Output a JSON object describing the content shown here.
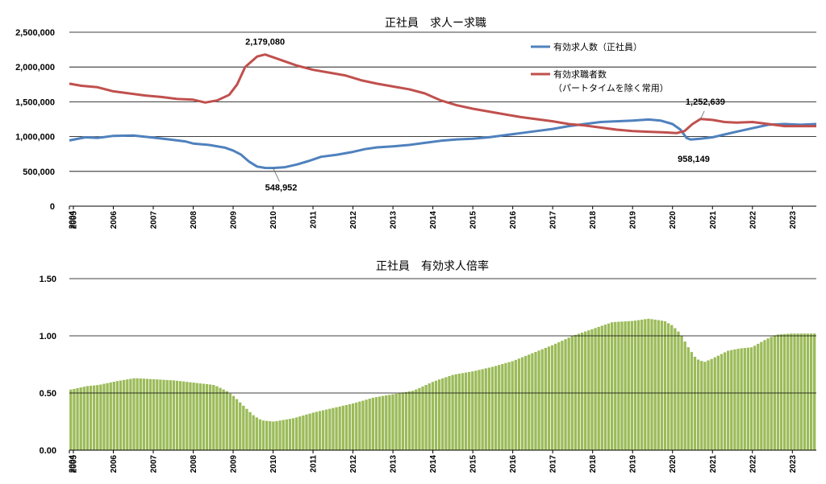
{
  "chart_data": [
    {
      "type": "line",
      "title": "正社員　求人ー求職",
      "xlabel": "",
      "ylabel": "",
      "ylim": [
        0,
        2500000
      ],
      "y_ticks": [
        "0",
        "500,000",
        "1,000,000",
        "1,500,000",
        "2,000,000",
        "2,500,000"
      ],
      "x_ticks": [
        "2004",
        "2005",
        "2006",
        "2007",
        "2008",
        "2009",
        "2010",
        "2011",
        "2012",
        "2013",
        "2014",
        "2015",
        "2016",
        "2017",
        "2018",
        "2019",
        "2020",
        "2021",
        "2022",
        "2023"
      ],
      "grid": true,
      "legend_position": "top-right",
      "series": [
        {
          "name": "有効求人数（正社員）",
          "color": "#4F81BD",
          "points": [
            [
              2004.9,
              945000
            ],
            [
              2005.3,
              990000
            ],
            [
              2005.6,
              980000
            ],
            [
              2006.0,
              1010000
            ],
            [
              2006.5,
              1015000
            ],
            [
              2007.0,
              985000
            ],
            [
              2007.4,
              960000
            ],
            [
              2007.8,
              930000
            ],
            [
              2008.0,
              900000
            ],
            [
              2008.4,
              880000
            ],
            [
              2008.8,
              840000
            ],
            [
              2009.0,
              800000
            ],
            [
              2009.2,
              740000
            ],
            [
              2009.4,
              640000
            ],
            [
              2009.6,
              570000
            ],
            [
              2009.8,
              550000
            ],
            [
              2010.0,
              548952
            ],
            [
              2010.3,
              560000
            ],
            [
              2010.6,
              600000
            ],
            [
              2010.9,
              650000
            ],
            [
              2011.2,
              710000
            ],
            [
              2011.6,
              740000
            ],
            [
              2012.0,
              780000
            ],
            [
              2012.3,
              820000
            ],
            [
              2012.6,
              845000
            ],
            [
              2013.0,
              860000
            ],
            [
              2013.4,
              880000
            ],
            [
              2013.8,
              910000
            ],
            [
              2014.2,
              940000
            ],
            [
              2014.6,
              960000
            ],
            [
              2015.0,
              970000
            ],
            [
              2015.4,
              990000
            ],
            [
              2015.8,
              1020000
            ],
            [
              2016.2,
              1050000
            ],
            [
              2016.6,
              1080000
            ],
            [
              2017.0,
              1110000
            ],
            [
              2017.4,
              1150000
            ],
            [
              2017.8,
              1180000
            ],
            [
              2018.2,
              1210000
            ],
            [
              2018.6,
              1220000
            ],
            [
              2019.0,
              1230000
            ],
            [
              2019.4,
              1245000
            ],
            [
              2019.7,
              1230000
            ],
            [
              2020.0,
              1180000
            ],
            [
              2020.2,
              1100000
            ],
            [
              2020.35,
              980000
            ],
            [
              2020.45,
              958149
            ],
            [
              2020.7,
              970000
            ],
            [
              2021.0,
              990000
            ],
            [
              2021.3,
              1030000
            ],
            [
              2021.6,
              1070000
            ],
            [
              2022.0,
              1120000
            ],
            [
              2022.4,
              1170000
            ],
            [
              2022.8,
              1180000
            ],
            [
              2023.2,
              1170000
            ],
            [
              2023.6,
              1180000
            ]
          ]
        },
        {
          "name": "有効求職者数（パートタイムを除く常用）",
          "color": "#C0504D",
          "points": [
            [
              2004.9,
              1760000
            ],
            [
              2005.2,
              1730000
            ],
            [
              2005.6,
              1710000
            ],
            [
              2006.0,
              1650000
            ],
            [
              2006.4,
              1620000
            ],
            [
              2006.8,
              1590000
            ],
            [
              2007.2,
              1570000
            ],
            [
              2007.6,
              1540000
            ],
            [
              2008.0,
              1530000
            ],
            [
              2008.3,
              1490000
            ],
            [
              2008.6,
              1520000
            ],
            [
              2008.9,
              1600000
            ],
            [
              2009.1,
              1750000
            ],
            [
              2009.3,
              2000000
            ],
            [
              2009.6,
              2150000
            ],
            [
              2009.8,
              2179080
            ],
            [
              2010.0,
              2140000
            ],
            [
              2010.3,
              2080000
            ],
            [
              2010.6,
              2020000
            ],
            [
              2011.0,
              1960000
            ],
            [
              2011.4,
              1920000
            ],
            [
              2011.8,
              1880000
            ],
            [
              2012.2,
              1810000
            ],
            [
              2012.6,
              1760000
            ],
            [
              2013.0,
              1720000
            ],
            [
              2013.4,
              1680000
            ],
            [
              2013.8,
              1620000
            ],
            [
              2014.2,
              1520000
            ],
            [
              2014.6,
              1450000
            ],
            [
              2015.0,
              1400000
            ],
            [
              2015.4,
              1360000
            ],
            [
              2015.8,
              1320000
            ],
            [
              2016.2,
              1280000
            ],
            [
              2016.6,
              1250000
            ],
            [
              2017.0,
              1220000
            ],
            [
              2017.4,
              1180000
            ],
            [
              2017.8,
              1160000
            ],
            [
              2018.2,
              1130000
            ],
            [
              2018.6,
              1100000
            ],
            [
              2019.0,
              1080000
            ],
            [
              2019.4,
              1070000
            ],
            [
              2019.8,
              1060000
            ],
            [
              2020.1,
              1050000
            ],
            [
              2020.3,
              1080000
            ],
            [
              2020.5,
              1180000
            ],
            [
              2020.7,
              1252639
            ],
            [
              2021.0,
              1240000
            ],
            [
              2021.3,
              1210000
            ],
            [
              2021.6,
              1200000
            ],
            [
              2022.0,
              1210000
            ],
            [
              2022.4,
              1180000
            ],
            [
              2022.8,
              1150000
            ],
            [
              2023.2,
              1150000
            ],
            [
              2023.6,
              1150000
            ]
          ]
        }
      ],
      "annotations": [
        {
          "text": "2,179,080",
          "x": 2009.8,
          "y": 2179080
        },
        {
          "text": "548,952",
          "x": 2010.0,
          "y": 548952
        },
        {
          "text": "1,252,639",
          "x": 2020.7,
          "y": 1252639
        },
        {
          "text": "958,149",
          "x": 2020.45,
          "y": 958149
        }
      ]
    },
    {
      "type": "bar",
      "title": "正社員　有効求人倍率",
      "xlabel": "",
      "ylabel": "",
      "ylim": [
        0,
        1.5
      ],
      "y_ticks": [
        "0.00",
        "0.50",
        "1.00",
        "1.50"
      ],
      "x_ticks": [
        "2004",
        "2005",
        "2006",
        "2007",
        "2008",
        "2009",
        "2010",
        "2011",
        "2012",
        "2013",
        "2014",
        "2015",
        "2016",
        "2017",
        "2018",
        "2019",
        "2020",
        "2021",
        "2022",
        "2023"
      ],
      "grid": true,
      "color": "#9BBB59",
      "series": [
        {
          "anchors": [
            [
              2004.9,
              0.53
            ],
            [
              2005.3,
              0.56
            ],
            [
              2005.6,
              0.57
            ],
            [
              2006.0,
              0.6
            ],
            [
              2006.5,
              0.63
            ],
            [
              2007.0,
              0.62
            ],
            [
              2007.5,
              0.61
            ],
            [
              2008.0,
              0.59
            ],
            [
              2008.5,
              0.57
            ],
            [
              2008.8,
              0.52
            ],
            [
              2009.0,
              0.47
            ],
            [
              2009.2,
              0.4
            ],
            [
              2009.5,
              0.3
            ],
            [
              2009.7,
              0.26
            ],
            [
              2010.0,
              0.25
            ],
            [
              2010.5,
              0.28
            ],
            [
              2011.0,
              0.33
            ],
            [
              2011.5,
              0.37
            ],
            [
              2012.0,
              0.41
            ],
            [
              2012.5,
              0.46
            ],
            [
              2013.0,
              0.49
            ],
            [
              2013.5,
              0.52
            ],
            [
              2014.0,
              0.6
            ],
            [
              2014.5,
              0.66
            ],
            [
              2015.0,
              0.69
            ],
            [
              2015.5,
              0.73
            ],
            [
              2016.0,
              0.78
            ],
            [
              2016.5,
              0.85
            ],
            [
              2017.0,
              0.92
            ],
            [
              2017.5,
              1.0
            ],
            [
              2018.0,
              1.06
            ],
            [
              2018.5,
              1.12
            ],
            [
              2019.0,
              1.13
            ],
            [
              2019.4,
              1.15
            ],
            [
              2019.8,
              1.13
            ],
            [
              2020.0,
              1.09
            ],
            [
              2020.2,
              1.02
            ],
            [
              2020.4,
              0.9
            ],
            [
              2020.6,
              0.8
            ],
            [
              2020.8,
              0.77
            ],
            [
              2021.0,
              0.8
            ],
            [
              2021.4,
              0.87
            ],
            [
              2021.7,
              0.89
            ],
            [
              2022.0,
              0.9
            ],
            [
              2022.3,
              0.96
            ],
            [
              2022.6,
              1.01
            ],
            [
              2023.0,
              1.02
            ],
            [
              2023.4,
              1.02
            ],
            [
              2023.6,
              1.02
            ]
          ]
        }
      ]
    }
  ]
}
